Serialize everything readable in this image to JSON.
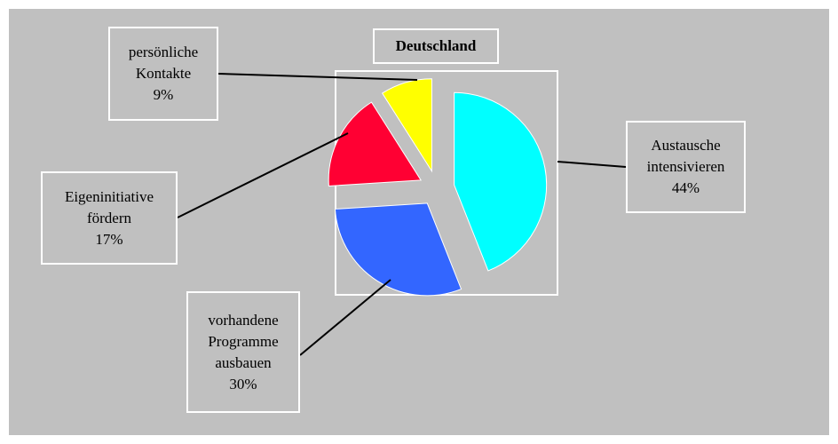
{
  "chart_data": {
    "type": "pie",
    "title": "Deutschland",
    "categories": [
      "Austausche intensivieren",
      "vorhandene Programme ausbauen",
      "Eigeninitiative fördern",
      "persönliche Kontakte"
    ],
    "values": [
      44,
      30,
      17,
      9
    ],
    "value_labels": [
      "44%",
      "30%",
      "17%",
      "9%"
    ],
    "colors": [
      "#00ffff",
      "#3366ff",
      "#ff0033",
      "#ffff00"
    ]
  }
}
